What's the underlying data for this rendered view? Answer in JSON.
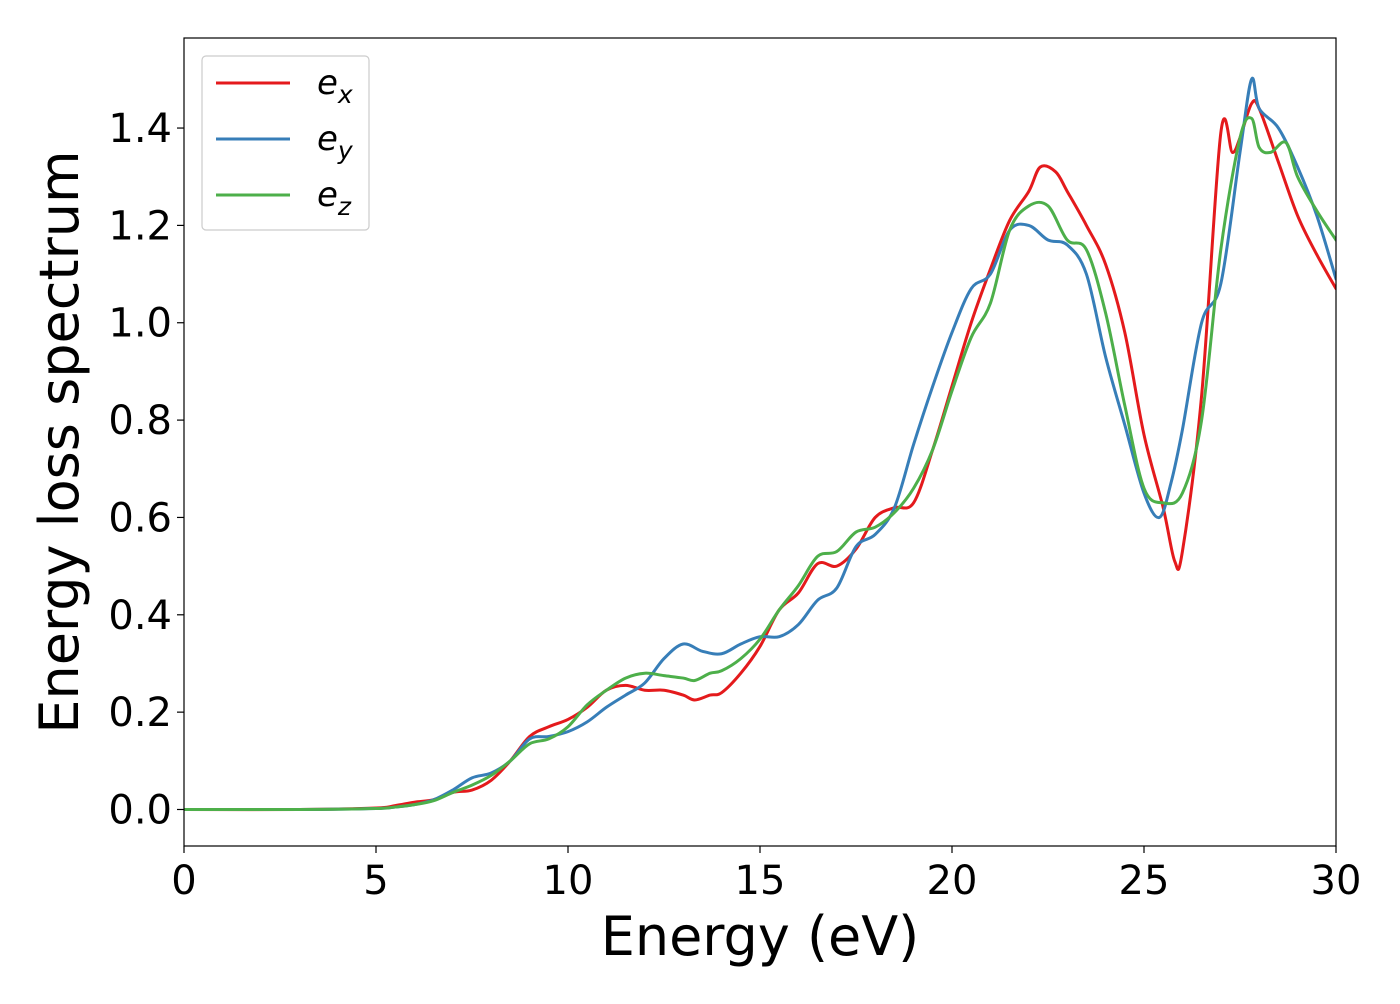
{
  "chart_data": {
    "type": "line",
    "title": "",
    "xlabel": "Energy (eV)",
    "ylabel": "Energy loss spectrum",
    "xlim": [
      0,
      30
    ],
    "ylim": [
      -0.075,
      1.585
    ],
    "grid": false,
    "legend_position": "top-left",
    "xticks": [
      0,
      5,
      10,
      15,
      20,
      25,
      30
    ],
    "xtick_labels": [
      "0",
      "5",
      "10",
      "15",
      "20",
      "25",
      "30"
    ],
    "yticks": [
      0.0,
      0.2,
      0.4,
      0.6,
      0.8,
      1.0,
      1.2,
      1.4
    ],
    "ytick_labels": [
      "0.0",
      "0.2",
      "0.4",
      "0.6",
      "0.8",
      "1.0",
      "1.2",
      "1.4"
    ],
    "series": [
      {
        "name": "e_x",
        "label_base": "e",
        "label_sub": "x",
        "color": "#e41a1c",
        "x": [
          0,
          3,
          5,
          5.5,
          6,
          6.5,
          7,
          7.5,
          8,
          8.5,
          9,
          9.5,
          10,
          10.5,
          11,
          11.5,
          12,
          12.5,
          13,
          13.3,
          13.7,
          14,
          14.5,
          15,
          15.5,
          16,
          16.5,
          17,
          17.5,
          18,
          18.5,
          19,
          19.5,
          20,
          20.5,
          21,
          21.5,
          22,
          22.3,
          22.7,
          23,
          23.5,
          24,
          24.5,
          25,
          25.5,
          25.8,
          26,
          26.5,
          27,
          27.3,
          27.5,
          27.8,
          28,
          28.5,
          29,
          29.5,
          30
        ],
        "values": [
          0.0,
          0.0,
          0.003,
          0.008,
          0.015,
          0.02,
          0.035,
          0.04,
          0.06,
          0.1,
          0.15,
          0.17,
          0.185,
          0.21,
          0.245,
          0.255,
          0.245,
          0.245,
          0.235,
          0.225,
          0.235,
          0.24,
          0.28,
          0.335,
          0.41,
          0.445,
          0.505,
          0.5,
          0.535,
          0.6,
          0.62,
          0.63,
          0.74,
          0.87,
          1.0,
          1.11,
          1.21,
          1.27,
          1.32,
          1.31,
          1.27,
          1.2,
          1.12,
          0.98,
          0.77,
          0.62,
          0.51,
          0.53,
          0.85,
          1.39,
          1.35,
          1.38,
          1.45,
          1.44,
          1.33,
          1.22,
          1.14,
          1.07
        ]
      },
      {
        "name": "e_y",
        "label_base": "e",
        "label_sub": "y",
        "color": "#377eb8",
        "x": [
          0,
          3,
          5,
          5.5,
          6,
          6.5,
          7,
          7.5,
          8,
          8.5,
          9,
          9.5,
          10,
          10.5,
          11,
          11.5,
          12,
          12.5,
          13,
          13.5,
          14,
          14.5,
          15,
          15.5,
          16,
          16.5,
          17,
          17.5,
          18,
          18.5,
          19,
          19.5,
          20,
          20.5,
          21,
          21.5,
          22,
          22.5,
          23,
          23.5,
          24,
          24.5,
          25,
          25.4,
          25.7,
          26,
          26.5,
          27,
          27.5,
          27.8,
          28,
          28.5,
          29,
          29.5,
          30
        ],
        "values": [
          0.0,
          0.0,
          0.002,
          0.005,
          0.01,
          0.02,
          0.04,
          0.065,
          0.075,
          0.1,
          0.145,
          0.15,
          0.16,
          0.18,
          0.21,
          0.235,
          0.26,
          0.31,
          0.34,
          0.325,
          0.32,
          0.34,
          0.355,
          0.355,
          0.38,
          0.43,
          0.455,
          0.54,
          0.565,
          0.62,
          0.75,
          0.87,
          0.98,
          1.07,
          1.1,
          1.19,
          1.2,
          1.17,
          1.16,
          1.1,
          0.93,
          0.79,
          0.65,
          0.6,
          0.67,
          0.78,
          1.0,
          1.08,
          1.35,
          1.5,
          1.44,
          1.4,
          1.32,
          1.22,
          1.09
        ]
      },
      {
        "name": "e_z",
        "label_base": "e",
        "label_sub": "z",
        "color": "#4daf4a",
        "x": [
          0,
          3,
          5,
          5.5,
          6,
          6.5,
          7,
          7.5,
          8,
          8.5,
          9,
          9.5,
          10,
          10.5,
          11,
          11.5,
          12,
          12.5,
          13,
          13.3,
          13.7,
          14,
          14.5,
          15,
          15.5,
          16,
          16.5,
          17,
          17.5,
          18,
          18.5,
          19,
          19.5,
          20,
          20.5,
          21,
          21.5,
          22,
          22.5,
          23,
          23.5,
          24,
          24.5,
          25,
          25.5,
          26,
          26.5,
          27,
          27.5,
          27.8,
          28,
          28.3,
          28.7,
          29,
          29.5,
          30
        ],
        "values": [
          0.0,
          0.0,
          0.002,
          0.005,
          0.01,
          0.018,
          0.035,
          0.05,
          0.07,
          0.1,
          0.135,
          0.145,
          0.17,
          0.215,
          0.245,
          0.27,
          0.28,
          0.275,
          0.27,
          0.265,
          0.28,
          0.285,
          0.31,
          0.35,
          0.41,
          0.46,
          0.52,
          0.53,
          0.57,
          0.58,
          0.61,
          0.66,
          0.74,
          0.86,
          0.97,
          1.04,
          1.19,
          1.24,
          1.24,
          1.17,
          1.15,
          1.02,
          0.83,
          0.66,
          0.63,
          0.65,
          0.8,
          1.15,
          1.38,
          1.42,
          1.36,
          1.35,
          1.37,
          1.3,
          1.23,
          1.17
        ]
      }
    ]
  }
}
